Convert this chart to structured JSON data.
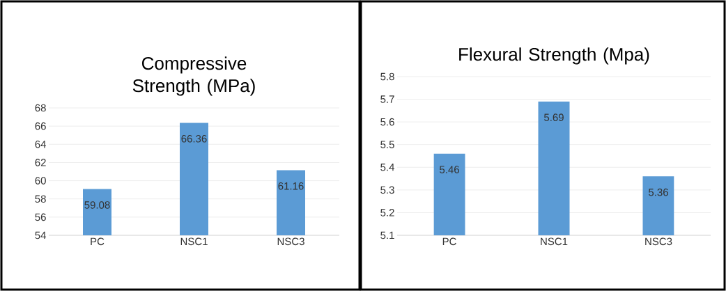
{
  "chart_data": [
    {
      "type": "bar",
      "title": "Compressive Strength (MPa)",
      "categories": [
        "PC",
        "NSC1",
        "NSC3"
      ],
      "values": [
        59.08,
        66.36,
        61.16
      ],
      "color": "#5b9bd5",
      "ylim": [
        54,
        68
      ],
      "yticks": [
        54,
        56,
        58,
        60,
        62,
        64,
        66,
        68
      ],
      "grid": "y",
      "data_labels": true
    },
    {
      "type": "bar",
      "title": "Flexural Strength (Mpa)",
      "categories": [
        "PC",
        "NSC1",
        "NSC3"
      ],
      "values": [
        5.46,
        5.69,
        5.36
      ],
      "color": "#5b9bd5",
      "ylim": [
        5.1,
        5.8
      ],
      "yticks": [
        5.1,
        5.2,
        5.3,
        5.4,
        5.5,
        5.6,
        5.7,
        5.8
      ],
      "grid": "y",
      "data_labels": true
    }
  ]
}
